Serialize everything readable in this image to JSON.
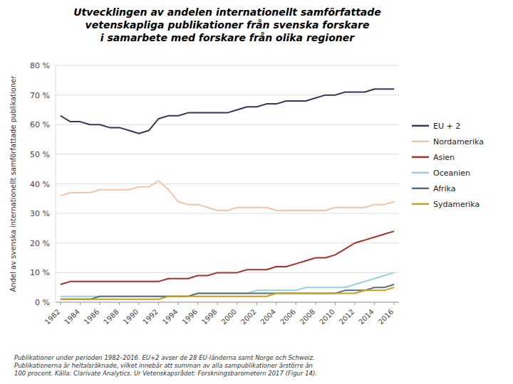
{
  "chart_data": {
    "type": "line",
    "title": "Utvecklingen av andelen internationellt samförfattade\nvetenskapliga publikationer från svenska forskare\ni samarbete med forskare från olika regioner",
    "y_label": "Andel av svenska internationellt samförfattade publikationer",
    "footnote": "Publikationer under perioden 1982–2016. EU+2 avser de 28 EU-länderna samt Norge och Schweiz.\nPublikationerna är heltalsräknade, vilket innebär att summan av alla sampublikationer ärstörre än\n100 procent. Källa: Clarivate Analytics. Ur Vetenskapsrådet: Forskningsbarometern 2017 (Figur 14).",
    "x": [
      1982,
      1983,
      1984,
      1985,
      1986,
      1987,
      1988,
      1989,
      1990,
      1991,
      1992,
      1993,
      1994,
      1995,
      1996,
      1997,
      1998,
      1999,
      2000,
      2001,
      2002,
      2003,
      2004,
      2005,
      2006,
      2007,
      2008,
      2009,
      2010,
      2011,
      2012,
      2013,
      2014,
      2015,
      2016
    ],
    "series": [
      {
        "name": "EU + 2",
        "color": "#3d3354",
        "values": [
          63,
          61,
          61,
          60,
          60,
          59,
          59,
          58,
          57,
          58,
          62,
          63,
          63,
          64,
          64,
          64,
          64,
          64,
          65,
          66,
          66,
          67,
          67,
          68,
          68,
          68,
          69,
          70,
          70,
          71,
          71,
          71,
          72,
          72,
          72
        ]
      },
      {
        "name": "Nordamerika",
        "color": "#f4c4a6",
        "values": [
          36,
          37,
          37,
          37,
          38,
          38,
          38,
          38,
          39,
          39,
          41,
          38,
          34,
          33,
          33,
          32,
          31,
          31,
          32,
          32,
          32,
          32,
          31,
          31,
          31,
          31,
          31,
          31,
          32,
          32,
          32,
          32,
          33,
          33,
          34
        ]
      },
      {
        "name": "Asien",
        "color": "#a63228",
        "values": [
          6,
          7,
          7,
          7,
          7,
          7,
          7,
          7,
          7,
          7,
          7,
          8,
          8,
          8,
          9,
          9,
          10,
          10,
          10,
          11,
          11,
          11,
          12,
          12,
          13,
          14,
          15,
          15,
          16,
          18,
          20,
          21,
          22,
          23,
          24
        ]
      },
      {
        "name": "Oceanien",
        "color": "#9ecfd8",
        "values": [
          2,
          2,
          2,
          2,
          2,
          2,
          2,
          2,
          2,
          2,
          2,
          2,
          2,
          2,
          3,
          3,
          3,
          3,
          3,
          3,
          4,
          4,
          4,
          4,
          4,
          5,
          5,
          5,
          5,
          5,
          6,
          7,
          8,
          9,
          10
        ]
      },
      {
        "name": "Afrika",
        "color": "#5a6e7a",
        "values": [
          1,
          1,
          1,
          1,
          2,
          2,
          2,
          2,
          2,
          2,
          2,
          2,
          2,
          2,
          3,
          3,
          3,
          3,
          3,
          3,
          3,
          3,
          3,
          3,
          3,
          3,
          3,
          3,
          3,
          4,
          4,
          4,
          5,
          5,
          6
        ]
      },
      {
        "name": "Sydamerika",
        "color": "#c8a020",
        "values": [
          1,
          1,
          1,
          1,
          1,
          1,
          1,
          1,
          1,
          1,
          1,
          2,
          2,
          2,
          2,
          2,
          2,
          2,
          2,
          2,
          2,
          2,
          3,
          3,
          3,
          3,
          3,
          3,
          3,
          3,
          3,
          4,
          4,
          4,
          5
        ]
      }
    ],
    "xlim": [
      1981.5,
      2016.5
    ],
    "xticks": [
      1982,
      1984,
      1986,
      1988,
      1990,
      1992,
      1994,
      1996,
      1998,
      2000,
      2002,
      2004,
      2006,
      2008,
      2010,
      2012,
      2014,
      2016
    ],
    "ylim": [
      0,
      80
    ],
    "yticks": [
      {
        "value": 0,
        "label": "0 %"
      },
      {
        "value": 10,
        "label": "10 %"
      },
      {
        "value": 20,
        "label": "20 %"
      },
      {
        "value": 30,
        "label": "30 %"
      },
      {
        "value": 40,
        "label": "40 %"
      },
      {
        "value": 50,
        "label": "50 %"
      },
      {
        "value": 60,
        "label": "60 %"
      },
      {
        "value": 70,
        "label": "70 %"
      },
      {
        "value": 80,
        "label": "80 %"
      }
    ],
    "grid": true,
    "legend": "right"
  }
}
